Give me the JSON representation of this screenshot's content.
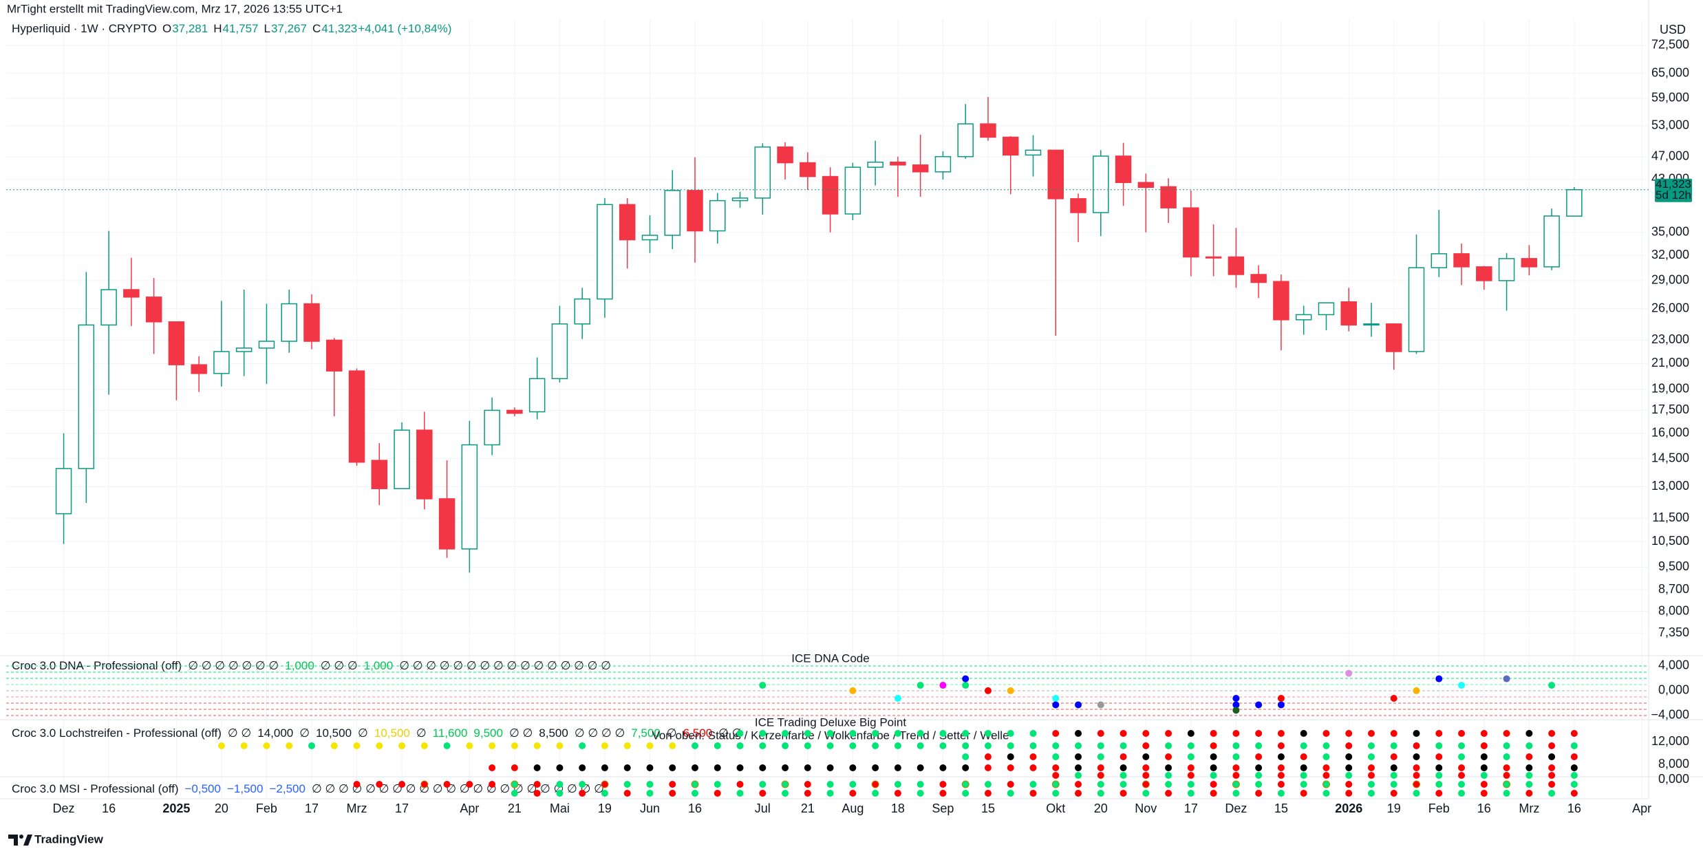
{
  "header": {
    "credit": "MrTight erstellt mit TradingView.com, Mrz 17, 2026 13:55 UTC+1",
    "logo": "TradingView"
  },
  "chart_data": {
    "type": "candlestick",
    "symbol_legend": [
      {
        "text": "Hyperliquid · 1W · CRYPTO"
      },
      {
        "text": "O"
      },
      {
        "text": "37,281",
        "color": "#089981"
      },
      {
        "text": "H"
      },
      {
        "text": "41,757",
        "color": "#089981"
      },
      {
        "text": "L"
      },
      {
        "text": "37,267",
        "color": "#089981"
      },
      {
        "text": "C"
      },
      {
        "text": "41,323",
        "color": "#089981"
      },
      {
        "text": "+4,041 (+10,84%)",
        "color": "#089981"
      }
    ],
    "currency": "USD",
    "up_color": "#089981",
    "down_color": "#f23645",
    "open": [
      11700,
      13950,
      24400,
      28000,
      27200,
      24700,
      20900,
      20200,
      22000,
      22300,
      22900,
      26500,
      23000,
      20400,
      14400,
      12900,
      16200,
      12400,
      10200,
      15300,
      17500,
      17400,
      19800,
      24500,
      27000,
      39000,
      34000,
      34600,
      41200,
      35200,
      39600,
      40000,
      48800,
      45900,
      43500,
      37600,
      45100,
      46000,
      45500,
      44300,
      47000,
      53400,
      50700,
      47300,
      48200,
      39900,
      37800,
      47100,
      42500,
      41800,
      38500,
      31800,
      31800,
      29700,
      28900,
      24900,
      25400,
      26700,
      24400,
      24500,
      22000,
      30500,
      32200,
      30600,
      29000,
      31600,
      30600,
      37281
    ],
    "high": [
      16000,
      30000,
      35200,
      31700,
      29300,
      24700,
      21600,
      26800,
      28000,
      26500,
      28000,
      27500,
      23200,
      20600,
      15400,
      16700,
      17400,
      14400,
      16800,
      18400,
      17700,
      21500,
      26300,
      28200,
      40000,
      40000,
      37400,
      44600,
      46900,
      40800,
      41000,
      49500,
      49700,
      47800,
      45100,
      45900,
      50000,
      47000,
      51200,
      48000,
      57700,
      59300,
      50900,
      51100,
      48200,
      40700,
      48200,
      49600,
      44000,
      43200,
      41200,
      36100,
      35600,
      30800,
      29700,
      26300,
      26600,
      28200,
      26600,
      24500,
      34700,
      38200,
      33500,
      30700,
      32300,
      33300,
      38400,
      41757
    ],
    "low": [
      10400,
      12200,
      18600,
      24300,
      21800,
      18200,
      18800,
      19200,
      20000,
      19400,
      21900,
      22200,
      17100,
      14100,
      12100,
      12900,
      11900,
      9850,
      9300,
      14700,
      17100,
      16900,
      19500,
      23100,
      25100,
      30400,
      32300,
      32800,
      31100,
      33500,
      38500,
      37500,
      43000,
      41300,
      35000,
      36700,
      42000,
      40200,
      40200,
      43000,
      46600,
      50000,
      40600,
      43500,
      23400,
      33700,
      34500,
      38800,
      35000,
      36300,
      29500,
      29500,
      28200,
      27100,
      22100,
      23500,
      23900,
      23800,
      23300,
      20500,
      21800,
      29400,
      28500,
      28000,
      25800,
      29600,
      30200,
      37267
    ],
    "close": [
      13950,
      24400,
      28000,
      27200,
      24700,
      20900,
      20200,
      22000,
      22300,
      22900,
      26500,
      22900,
      20400,
      14300,
      12900,
      16200,
      12400,
      10200,
      15300,
      17500,
      17300,
      19800,
      24500,
      27000,
      39000,
      34000,
      34600,
      41200,
      35200,
      39600,
      40000,
      48800,
      45900,
      43500,
      37600,
      45100,
      46000,
      45500,
      44300,
      47000,
      53400,
      50700,
      47300,
      48200,
      39900,
      37800,
      47100,
      42500,
      41700,
      38500,
      31800,
      31700,
      29700,
      28800,
      24900,
      25400,
      26600,
      24400,
      24500,
      22000,
      30500,
      32200,
      30600,
      29000,
      31600,
      30600,
      37300,
      41323
    ],
    "log_scale": true,
    "grid": true,
    "ylim": [
      6840,
      79400
    ],
    "yticks": [
      {
        "value": 7350,
        "label": "7,350"
      },
      {
        "value": 8000,
        "label": "8,000"
      },
      {
        "value": 8700,
        "label": "8,700"
      },
      {
        "value": 9500,
        "label": "9,500"
      },
      {
        "value": 10500,
        "label": "10,500"
      },
      {
        "value": 11500,
        "label": "11,500"
      },
      {
        "value": 13000,
        "label": "13,000"
      },
      {
        "value": 14500,
        "label": "14,500"
      },
      {
        "value": 16000,
        "label": "16,000"
      },
      {
        "value": 17500,
        "label": "17,500"
      },
      {
        "value": 19000,
        "label": "19,000"
      },
      {
        "value": 21000,
        "label": "21,000"
      },
      {
        "value": 23000,
        "label": "23,000"
      },
      {
        "value": 26000,
        "label": "26,000"
      },
      {
        "value": 29000,
        "label": "29,000"
      },
      {
        "value": 32000,
        "label": "32,000"
      },
      {
        "value": 35000,
        "label": "35,000"
      },
      {
        "value": 43000,
        "label": "43,000"
      },
      {
        "value": 47000,
        "label": "47,000"
      },
      {
        "value": 53000,
        "label": "53,000"
      },
      {
        "value": 59000,
        "label": "59,000"
      },
      {
        "value": 65000,
        "label": "65,000"
      },
      {
        "value": 72500,
        "label": "72,500"
      }
    ],
    "xlim": [
      -2.55,
      70.3
    ],
    "xticks": [
      {
        "value": 0,
        "label": "Dez"
      },
      {
        "value": 2,
        "label": "16"
      },
      {
        "value": 5,
        "label": "2025"
      },
      {
        "value": 7,
        "label": "20"
      },
      {
        "value": 9,
        "label": "Feb"
      },
      {
        "value": 11,
        "label": "17"
      },
      {
        "value": 13,
        "label": "Mrz"
      },
      {
        "value": 15,
        "label": "17"
      },
      {
        "value": 18,
        "label": "Apr"
      },
      {
        "value": 20,
        "label": "21"
      },
      {
        "value": 22,
        "label": "Mai"
      },
      {
        "value": 24,
        "label": "19"
      },
      {
        "value": 26,
        "label": "Jun"
      },
      {
        "value": 28,
        "label": "16"
      },
      {
        "value": 31,
        "label": "Jul"
      },
      {
        "value": 33,
        "label": "21"
      },
      {
        "value": 35,
        "label": "Aug"
      },
      {
        "value": 37,
        "label": "18"
      },
      {
        "value": 39,
        "label": "Sep"
      },
      {
        "value": 41,
        "label": "15"
      },
      {
        "value": 44,
        "label": "Okt"
      },
      {
        "value": 46,
        "label": "20"
      },
      {
        "value": 48,
        "label": "Nov"
      },
      {
        "value": 50,
        "label": "17"
      },
      {
        "value": 52,
        "label": "Dez"
      },
      {
        "value": 54,
        "label": "15"
      },
      {
        "value": 57,
        "label": "2026"
      },
      {
        "value": 59,
        "label": "19"
      },
      {
        "value": 61,
        "label": "Feb"
      },
      {
        "value": 63,
        "label": "16"
      },
      {
        "value": 65,
        "label": "Mrz"
      },
      {
        "value": 67,
        "label": "16"
      },
      {
        "value": 70,
        "label": "Apr"
      }
    ],
    "last_price": {
      "value": 41323,
      "label": "41,323",
      "countdown": "5d 12h"
    }
  },
  "panes": [
    {
      "title": "Croc 3.0 DNA - Professional (off)",
      "captions": [
        "ICE DNA Code"
      ],
      "tokens": [
        {
          "text": "∅ ∅ ∅ ∅ ∅ ∅ ∅"
        },
        {
          "text": "1,000",
          "color": "#00c853"
        },
        {
          "text": "∅ ∅ ∅"
        },
        {
          "text": "1,000",
          "color": "#00c853"
        },
        {
          "text": "∅ ∅ ∅ ∅ ∅ ∅ ∅ ∅ ∅ ∅ ∅ ∅ ∅ ∅ ∅ ∅"
        }
      ],
      "ylim": [
        -4.78,
        5.44
      ],
      "yticks": [
        {
          "value": 4,
          "label": "4,000"
        },
        {
          "value": 0,
          "label": "0,000"
        },
        {
          "value": -4,
          "label": "−4,000"
        }
      ]
    },
    {
      "title": "Croc 3.0 Lochstreifen - Professional (off)",
      "captions": [
        "ICE Trading Deluxe Big Point",
        "Von oben: Status / Kerzenfarbe / Wolkenfarbe / Trend / Setter / Welle"
      ],
      "tokens": [
        {
          "text": "∅ ∅"
        },
        {
          "text": "14,000"
        },
        {
          "text": "∅"
        },
        {
          "text": "10,500"
        },
        {
          "text": "∅"
        },
        {
          "text": "10,500",
          "color": "#e6d200"
        },
        {
          "text": "∅"
        },
        {
          "text": "11,600",
          "color": "#00c853"
        },
        {
          "text": "9,500",
          "color": "#00c853"
        },
        {
          "text": "∅ ∅"
        },
        {
          "text": "8,500"
        },
        {
          "text": "∅ ∅ ∅ ∅"
        },
        {
          "text": "7,500",
          "color": "#00c853"
        },
        {
          "text": "∅"
        },
        {
          "text": "6,500",
          "color": "#f00000"
        },
        {
          "text": "∅ ∅"
        }
      ],
      "ylim": [
        5.7,
        15.64
      ],
      "yticks": [
        {
          "value": 12,
          "label": "12,000"
        },
        {
          "value": 8,
          "label": "8,000"
        }
      ]
    },
    {
      "title": "Croc 3.0 MSI - Professional (off)",
      "captions": [],
      "tokens": [
        {
          "text": "−0,500",
          "color": "#2962ff"
        },
        {
          "text": "−1,500",
          "color": "#2962ff"
        },
        {
          "text": "−2,500",
          "color": "#2962ff"
        },
        {
          "text": "∅ ∅ ∅ ∅ ∅ ∅ ∅ ∅ ∅ ∅ ∅ ∅ ∅ ∅ ∅ ∅ ∅ ∅ ∅ ∅ ∅ ∅"
        }
      ],
      "ylim": [
        -3.375,
        0.25
      ],
      "yticks": [
        {
          "value": 0,
          "label": "0,000"
        }
      ]
    }
  ]
}
